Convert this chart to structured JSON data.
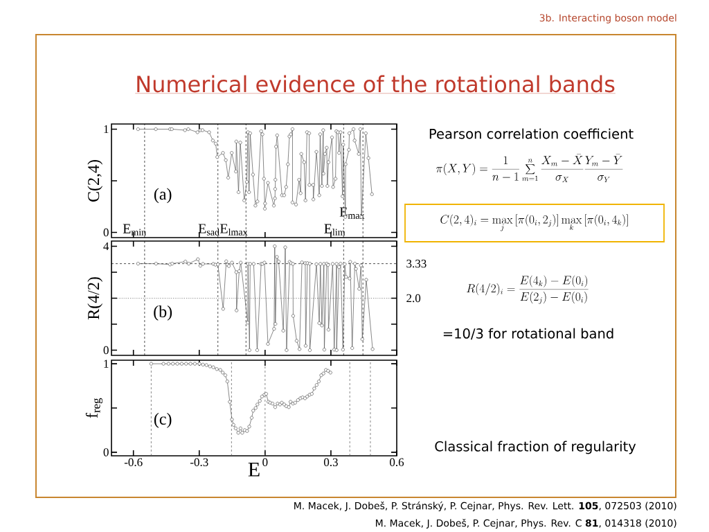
{
  "chart_data": [
    {
      "type": "line",
      "title": "Numerical evidence of the rotational bands",
      "ylabel": "C(2,4)",
      "color": "#555555",
      "marker": "circle",
      "x": [
        -0.579,
        -0.498,
        -0.433,
        -0.425,
        -0.365,
        -0.35,
        -0.308,
        -0.295,
        -0.285,
        -0.255,
        -0.238,
        -0.225,
        -0.218,
        -0.192,
        -0.179,
        -0.168,
        -0.152,
        -0.133,
        -0.131,
        -0.121,
        -0.113,
        -0.095,
        -0.083,
        -0.078,
        -0.073,
        -0.068,
        -0.055,
        -0.044,
        -0.035,
        -0.018,
        -0.012,
        -0.005,
        -0.001,
        0.0,
        0.013,
        0.04,
        0.045,
        0.046,
        0.047,
        0.05,
        0.055,
        0.077,
        0.087,
        0.096,
        0.104,
        0.111,
        0.117,
        0.125,
        0.125,
        0.141,
        0.155,
        0.162,
        0.165,
        0.178,
        0.184,
        0.191,
        0.201,
        0.202,
        0.219,
        0.22,
        0.234,
        0.247,
        0.251,
        0.259,
        0.265,
        0.266,
        0.273,
        0.281,
        0.284,
        0.289,
        0.305,
        0.31,
        0.321,
        0.325,
        0.332,
        0.337,
        0.344,
        0.353,
        0.356,
        0.366,
        0.367,
        0.382,
        0.384,
        0.403,
        0.408,
        0.427,
        0.434,
        0.439,
        0.459,
        0.471,
        0.487
      ],
      "values": [
        1.0,
        1.0,
        1.0,
        1.0,
        0.99,
        1.0,
        0.97,
        0.99,
        0.99,
        0.97,
        0.89,
        0.86,
        0.73,
        0.77,
        0.7,
        0.53,
        0.77,
        0.59,
        0.88,
        0.39,
        0.87,
        0.31,
        0.49,
        0.97,
        0.39,
        0.96,
        0.56,
        0.26,
        0.3,
        0.98,
        0.95,
        0.52,
        0.23,
        0.28,
        0.48,
        0.26,
        0.33,
        0.42,
        0.51,
        0.83,
        0.94,
        0.36,
        0.36,
        0.44,
        0.66,
        0.93,
        0.95,
        1.0,
        0.29,
        0.27,
        0.51,
        0.38,
        0.76,
        0.68,
        0.31,
        0.97,
        0.96,
        0.46,
        0.46,
        0.32,
        0.78,
        0.36,
        0.95,
        0.45,
        0.99,
        0.57,
        0.76,
        0.82,
        0.45,
        0.68,
        0.92,
        0.44,
        0.52,
        0.98,
        0.97,
        0.77,
        0.97,
        0.35,
        0.85,
        0.15,
        0.66,
        0.8,
        0.96,
        1.0,
        0.89,
        0.76,
        1.0,
        0.15,
        0.96,
        0.72,
        0.37
      ],
      "xlim": [
        -0.7,
        0.6
      ],
      "ylim": [
        -0.05,
        1.05
      ],
      "xticks": [
        -0.6,
        -0.3,
        0,
        0.3,
        0.6
      ],
      "yticks": [
        0,
        {
          "value": 0.5,
          "label": null
        },
        1
      ],
      "tick_labels": "y",
      "ref_lines": [
        {
          "axis": "x",
          "value": -0.549,
          "label": "E$_{min}$",
          "line_style": "dashed",
          "color": "#000000"
        },
        {
          "axis": "x",
          "value": -0.215,
          "label": "E$_{sad}$",
          "line_style": "dashed",
          "color": "#000000"
        },
        {
          "axis": "x",
          "value": -0.087,
          "label": "E$_{lmax}$",
          "line_style": "dashed",
          "color": "#000000"
        },
        {
          "axis": "x",
          "value": 0.358,
          "label": "E$_{lim}$",
          "line_style": "dashed",
          "color": "#000000"
        },
        {
          "axis": "x",
          "value": 0.446,
          "label": "E$_{max}$",
          "line_style": "dashed",
          "color": "#000000"
        }
      ],
      "annotations": [
        "(a)",
        "3b. Interacting boson model",
        "Pearson correlation coefficient",
        "\\pi(X,Y)=\\frac{1}{n-1}\\sum_{m=1}^{n}\\frac{X_m-\\bar{X}}{\\sigma_X}\\frac{Y_m-\\bar{Y}}{\\sigma_Y}",
        "C(2,4)_i=\\max_j\\left[\\pi(0_i,2_j)\\right]\\max_k\\left[\\pi(0_i,4_k)\\right]",
        "R(4/2)_i=\\frac{E(4_k)-E(0_i)}{E(2_j)-E(0_i)}",
        "=10/3 for rotational band",
        "Classical fraction of regularity",
        "M. Macek, J. Dobeš, P. Stránský, P. Cejnar, Phys. Rev. Lett. **105**, 072503 (2010)",
        "M. Macek, J. Dobeš, P. Cejnar, Phys. Rev. C **81**, 014318 (2010)"
      ]
    },
    {
      "type": "line",
      "ylabel": "R(4/2)",
      "color": "#555555",
      "marker": "circle",
      "x": [
        -0.579,
        -0.497,
        -0.433,
        -0.423,
        -0.363,
        -0.348,
        -0.306,
        -0.295,
        -0.283,
        -0.236,
        -0.226,
        -0.215,
        -0.191,
        -0.177,
        -0.172,
        -0.165,
        -0.151,
        -0.131,
        -0.13,
        -0.118,
        -0.111,
        -0.079,
        -0.078,
        -0.071,
        -0.068,
        -0.052,
        -0.036,
        -0.018,
        -0.012,
        -0.003,
        0.013,
        0.041,
        0.044,
        0.047,
        0.054,
        0.062,
        0.083,
        0.092,
        0.098,
        0.112,
        0.118,
        0.127,
        0.128,
        0.144,
        0.157,
        0.168,
        0.183,
        0.185,
        0.193,
        0.204,
        0.204,
        0.234,
        0.247,
        0.252,
        0.259,
        0.268,
        0.27,
        0.281,
        0.287,
        0.289,
        0.308,
        0.315,
        0.326,
        0.326,
        0.337,
        0.344,
        0.355,
        0.363,
        0.369,
        0.385,
        0.388,
        0.397,
        0.409,
        0.414,
        0.429,
        0.437,
        0.443,
        0.461,
        0.49
      ],
      "values": [
        3.33,
        3.33,
        3.3,
        3.33,
        3.41,
        3.33,
        3.5,
        3.25,
        3.32,
        3.32,
        3.29,
        3.3,
        1.59,
        3.42,
        3.29,
        3.24,
        3.37,
        3.0,
        1.53,
        3.04,
        3.37,
        1.06,
        3.32,
        0.0,
        3.32,
        3.32,
        0.0,
        3.32,
        3.32,
        3.37,
        0.24,
        0.82,
        4.0,
        1.01,
        3.59,
        3.41,
        0.75,
        3.96,
        0.0,
        3.4,
        3.35,
        3.32,
        1.32,
        0.36,
        0.04,
        3.38,
        3.35,
        0.17,
        3.35,
        3.33,
        0.0,
        3.31,
        1.04,
        3.32,
        0.95,
        3.32,
        0.02,
        3.33,
        3.28,
        0.79,
        3.32,
        0.02,
        3.32,
        0.0,
        3.2,
        3.33,
        0.02,
        3.31,
        2.82,
        2.76,
        3.4,
        0.08,
        3.33,
        3.13,
        2.36,
        3.26,
        0.42,
        2.71,
        0.04
      ],
      "xlim": [
        -0.7,
        0.6
      ],
      "ylim": [
        -0.2,
        4.2
      ],
      "xticks": [
        -0.6,
        -0.3,
        0,
        0.3,
        0.6
      ],
      "yticks": [
        0,
        {
          "value": 1,
          "label": null
        },
        {
          "value": 2,
          "label": null
        },
        {
          "value": 3,
          "label": null
        },
        4
      ],
      "tick_labels": "y",
      "ref_lines": [
        {
          "axis": "y",
          "value": 3.33,
          "label": "3.33",
          "line_style": "dashed",
          "color": "#000000"
        },
        {
          "axis": "y",
          "value": 2.0,
          "label": "2.0",
          "line_style": "dotted",
          "color": "#000000"
        },
        {
          "axis": "x",
          "value": -0.549,
          "line_style": "dashed",
          "color": "#000000"
        },
        {
          "axis": "x",
          "value": -0.215,
          "line_style": "dashed",
          "color": "#000000"
        },
        {
          "axis": "x",
          "value": -0.087,
          "line_style": "dashed",
          "color": "#000000"
        },
        {
          "axis": "x",
          "value": 0.358,
          "line_style": "dashed",
          "color": "#000000"
        },
        {
          "axis": "x",
          "value": 0.446,
          "line_style": "dashed",
          "color": "#000000"
        }
      ],
      "annotations": [
        "(b)"
      ]
    },
    {
      "type": "line",
      "ylabel": "f$_{reg}$",
      "xlabel": "E",
      "color": "#555555",
      "marker": "circle",
      "x": [
        -0.519,
        -0.463,
        -0.44,
        -0.42,
        -0.4,
        -0.38,
        -0.36,
        -0.34,
        -0.32,
        -0.299,
        -0.283,
        -0.267,
        -0.251,
        -0.236,
        -0.22,
        -0.204,
        -0.193,
        -0.181,
        -0.172,
        -0.161,
        -0.151,
        -0.144,
        -0.134,
        -0.122,
        -0.112,
        -0.104,
        -0.093,
        -0.082,
        -0.072,
        -0.061,
        -0.054,
        -0.043,
        -0.035,
        -0.024,
        -0.014,
        -0.003,
        0.005,
        0.015,
        0.023,
        0.034,
        0.046,
        0.057,
        0.068,
        0.076,
        0.087,
        0.097,
        0.108,
        0.116,
        0.127,
        0.137,
        0.15,
        0.161,
        0.171,
        0.182,
        0.192,
        0.203,
        0.213,
        0.224,
        0.235,
        0.245,
        0.256,
        0.266,
        0.277,
        0.287,
        0.298
      ],
      "values": [
        1.0,
        1.0,
        1.0,
        1.0,
        1.0,
        1.0,
        1.0,
        1.0,
        1.0,
        1.0,
        0.99,
        0.985,
        0.97,
        0.96,
        0.94,
        0.93,
        0.9,
        0.87,
        0.8,
        0.57,
        0.37,
        0.31,
        0.27,
        0.22,
        0.27,
        0.22,
        0.25,
        0.24,
        0.29,
        0.39,
        0.47,
        0.5,
        0.54,
        0.58,
        0.63,
        0.65,
        0.66,
        0.57,
        0.56,
        0.55,
        0.51,
        0.55,
        0.54,
        0.56,
        0.54,
        0.52,
        0.51,
        0.57,
        0.55,
        0.56,
        0.59,
        0.61,
        0.62,
        0.61,
        0.63,
        0.65,
        0.66,
        0.72,
        0.76,
        0.8,
        0.87,
        0.89,
        0.93,
        0.92,
        0.9
      ],
      "xlim": [
        -0.7,
        0.6
      ],
      "ylim": [
        -0.04,
        1.04
      ],
      "xticks": [
        -0.6,
        -0.3,
        0,
        0.3,
        0.6
      ],
      "yticks": [
        0,
        {
          "value": 0.5,
          "label": null
        },
        1
      ],
      "ref_lines": [
        {
          "axis": "x",
          "value": -0.519,
          "line_style": "dashed",
          "color": "#555555"
        },
        {
          "axis": "x",
          "value": -0.153,
          "line_style": "dashed",
          "color": "#555555"
        },
        {
          "axis": "x",
          "value": 0.0,
          "line_style": "dashed",
          "color": "#555555"
        },
        {
          "axis": "x",
          "value": 0.386,
          "line_style": "dashed",
          "color": "#555555"
        },
        {
          "axis": "x",
          "value": 0.48,
          "line_style": "dashed",
          "color": "#555555"
        }
      ],
      "annotations": [
        "(c)"
      ]
    }
  ]
}
